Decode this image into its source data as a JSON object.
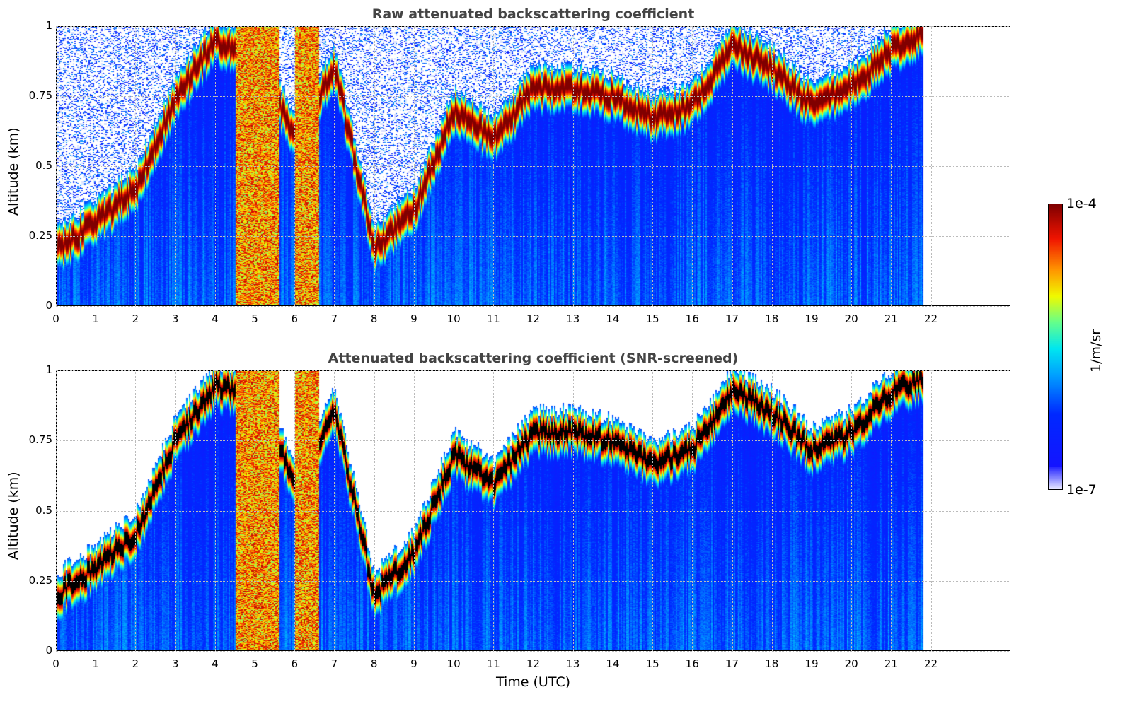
{
  "chart_data": [
    {
      "type": "heatmap",
      "title": "Raw attenuated backscattering coefficient",
      "xlabel": "",
      "ylabel": "Altitude (km)",
      "xlim": [
        0,
        24
      ],
      "ylim": [
        0,
        1
      ],
      "xticks": [
        "0",
        "1",
        "2",
        "3",
        "4",
        "5",
        "6",
        "7",
        "8",
        "9",
        "10",
        "11",
        "12",
        "13",
        "14",
        "15",
        "16",
        "17",
        "18",
        "19",
        "20",
        "21",
        "22"
      ],
      "yticks": [
        "0",
        "0.25",
        "0.5",
        "0.75",
        "1"
      ],
      "grid": true,
      "data_end_hour": 21.8
    },
    {
      "type": "heatmap",
      "title": "Attenuated backscattering coefficient (SNR-screened)",
      "xlabel": "Time (UTC)",
      "ylabel": "Altitude (km)",
      "xlim": [
        0,
        24
      ],
      "ylim": [
        0,
        1
      ],
      "xticks": [
        "0",
        "1",
        "2",
        "3",
        "4",
        "5",
        "6",
        "7",
        "8",
        "9",
        "10",
        "11",
        "12",
        "13",
        "14",
        "15",
        "16",
        "17",
        "18",
        "19",
        "20",
        "21",
        "22"
      ],
      "yticks": [
        "0",
        "0.25",
        "0.5",
        "0.75",
        "1"
      ],
      "grid": true,
      "data_end_hour": 21.8
    }
  ],
  "colorbar": {
    "label": "1/m/sr",
    "max_label": "1e-4",
    "min_label": "1e-7",
    "scale": "log"
  },
  "cloud_layer_center_km": {
    "hours": [
      0,
      1,
      2,
      3,
      4,
      5,
      6,
      7,
      8,
      9,
      10,
      11,
      12,
      13,
      14,
      15,
      16,
      17,
      18,
      19,
      20,
      21,
      21.8
    ],
    "values": [
      0.2,
      0.3,
      0.42,
      0.75,
      0.95,
      0.9,
      0.6,
      0.85,
      0.2,
      0.35,
      0.7,
      0.6,
      0.78,
      0.78,
      0.75,
      0.67,
      0.72,
      0.93,
      0.85,
      0.72,
      0.78,
      0.92,
      0.98
    ]
  },
  "precipitation_columns_hours": [
    [
      4.5,
      5.6
    ],
    [
      6.0,
      6.6
    ]
  ]
}
